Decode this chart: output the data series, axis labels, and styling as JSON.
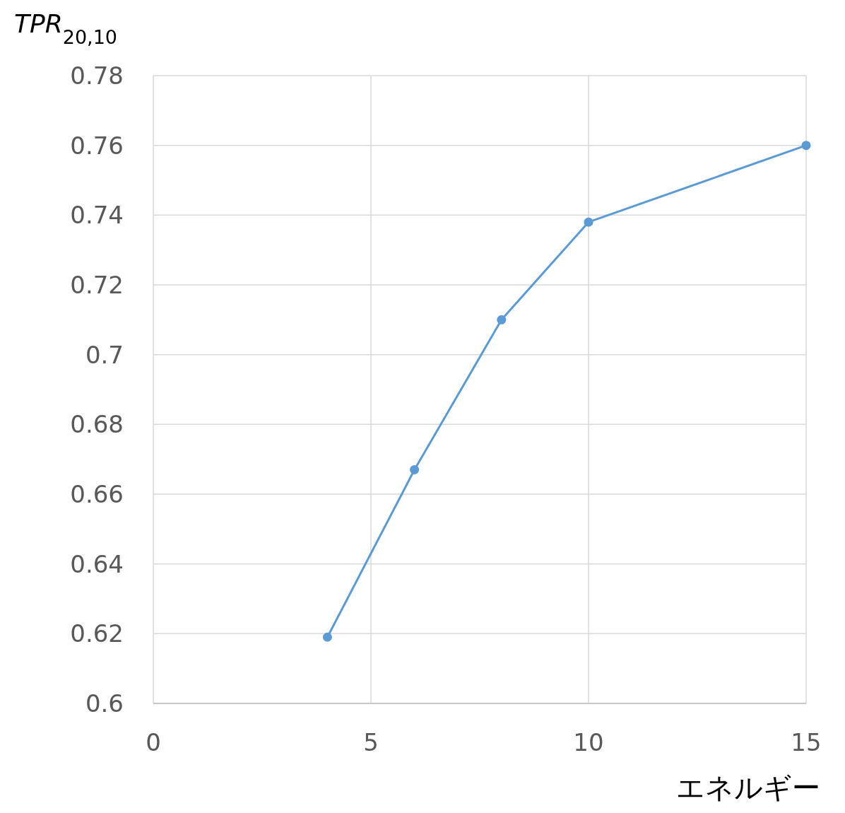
{
  "chart_data": {
    "type": "line",
    "xlabel": "エネルギー",
    "ylabel": "TPR$_{20,10}$",
    "x": [
      4,
      6,
      8,
      10,
      15
    ],
    "series": [
      {
        "color": "#5b9bd5",
        "values": [
          0.619,
          0.667,
          0.71,
          0.738,
          0.76
        ]
      }
    ],
    "xlim": [
      0,
      15
    ],
    "xticks": [
      0,
      5,
      10,
      15
    ],
    "ylim": [
      0.6,
      0.78
    ],
    "yticks": [
      0.6,
      0.62,
      0.64,
      0.66,
      0.68,
      0.7,
      0.72,
      0.74,
      0.76,
      0.78
    ],
    "grid": true,
    "marker": "circle",
    "line_style": "solid"
  }
}
